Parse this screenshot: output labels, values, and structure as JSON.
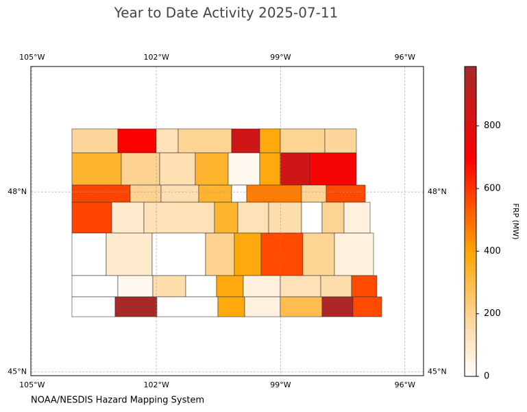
{
  "map": {
    "title": "Year to Date Activity 2025-07-11",
    "source": "NOAA/NESDIS Hazard Mapping System",
    "lonlim": [
      -105.03,
      -95.55
    ],
    "latlim": [
      44.94,
      50.09
    ],
    "lonticks": [
      {
        "value": -105,
        "label": "105°W"
      },
      {
        "value": -102,
        "label": "102°W"
      },
      {
        "value": -99,
        "label": "99°W"
      },
      {
        "value": -96,
        "label": "96°W"
      }
    ],
    "latticks": [
      {
        "value": 48,
        "label": "48°N"
      },
      {
        "value": 45,
        "label": "45°N"
      }
    ],
    "grid": true,
    "colorbar": {
      "label": "FRP (MW)",
      "lim": [
        0,
        990
      ],
      "ticks": [
        0,
        200,
        400,
        600,
        800
      ]
    },
    "county_frp": [
      180,
      700,
      130,
      190,
      850,
      380,
      190,
      180,
      330,
      200,
      140,
      330,
      30,
      380,
      850,
      720,
      570,
      200,
      140,
      330,
      0,
      470,
      190,
      560,
      570,
      90,
      130,
      330,
      130,
      150,
      0,
      190,
      60,
      0,
      90,
      0,
      200,
      380,
      560,
      190,
      60,
      0,
      30,
      150,
      0,
      380,
      60,
      130,
      150,
      560,
      0,
      980,
      0,
      380,
      60,
      290,
      960,
      560
    ]
  }
}
